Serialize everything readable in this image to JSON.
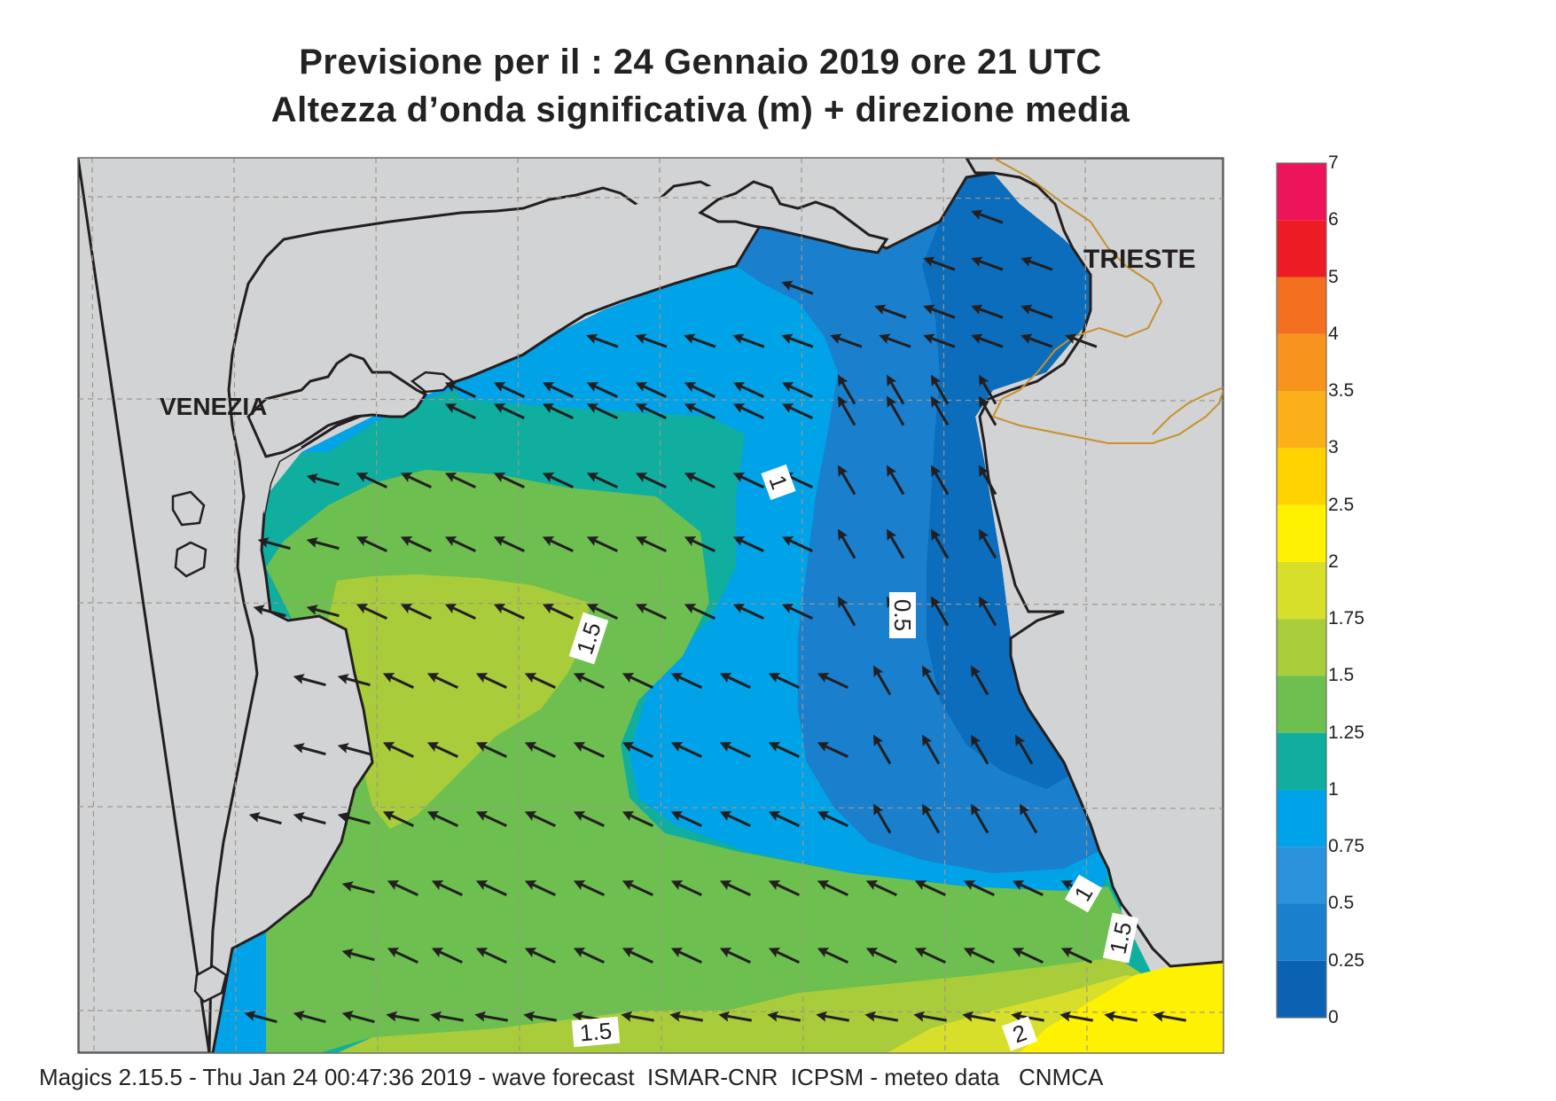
{
  "header": {
    "title": "Previsione per il  :  24  Gennaio  2019   ore 21 UTC",
    "subtitle": "Altezza d’onda significativa (m) + direzione media"
  },
  "cities": {
    "venezia": "VENEZIA",
    "trieste": "TRIESTE"
  },
  "contours": [
    "1",
    "0.5",
    "1.5",
    "1.5",
    "1",
    "1.5",
    "2"
  ],
  "legend": {
    "labels": [
      "0",
      "0.25",
      "0.5",
      "0.75",
      "1",
      "1.25",
      "1.5",
      "1.75",
      "2",
      "2.5",
      "3",
      "3.5",
      "4",
      "5",
      "6",
      "7"
    ],
    "colors": [
      "#0b62b3",
      "#1a7fcc",
      "#2a93dc",
      "#00a2e8",
      "#0fae9f",
      "#6dbf4f",
      "#a8cc3a",
      "#d7df2b",
      "#fff200",
      "#ffd200",
      "#fbb019",
      "#f8941d",
      "#f37021",
      "#ed1c24",
      "#ed145b"
    ]
  },
  "map_colors": {
    "land": "#d1d3d4",
    "coast": "#231f20",
    "border": "#c8912b",
    "grid": "#a0968a",
    "arrow": "#231f20"
  },
  "footer": "Magics 2.15.5 - Thu Jan 24 00:47:36 2019 - wave forecast  ISMAR-CNR  ICPSM - meteo data   CNMCA"
}
